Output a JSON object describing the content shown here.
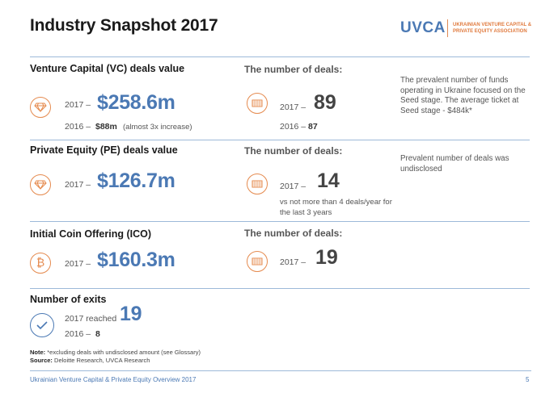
{
  "title": "Industry Snapshot 2017",
  "logo": {
    "mark": "UVCA",
    "text": "UKRAINIAN VENTURE CAPITAL & PRIVATE EQUITY ASSOCIATION"
  },
  "vc": {
    "label": "Venture Capital (VC) deals value",
    "year_2017": "2017 –",
    "value_2017": "$258.6m",
    "year_2016": "2016 –",
    "value_2016": "$88m",
    "note_2016": "(almost 3x increase)",
    "deals_label": "The number of deals:",
    "deals_year_2017": "2017 –",
    "deals_2017": "89",
    "deals_year_2016": "2016 –",
    "deals_2016": "87",
    "side_note": "The prevalent number of funds operating in Ukraine focused on the Seed stage. The average ticket at Seed stage - $484k*"
  },
  "pe": {
    "label": "Private Equity (PE) deals value",
    "year_2017": "2017 –",
    "value_2017": "$126.7m",
    "deals_label": "The number of deals:",
    "deals_year_2017": "2017 –",
    "deals_2017": "14",
    "deals_note": "vs not more than 4 deals/year for the last 3 years",
    "side_note": "Prevalent number of deals was undisclosed"
  },
  "ico": {
    "label": "Initial Coin Offering (ICO)",
    "year_2017": "2017 –",
    "value_2017": "$160.3m",
    "deals_label": "The number of deals:",
    "deals_year_2017": "2017 –",
    "deals_2017": "19"
  },
  "exits": {
    "label": "Number of exits",
    "reached_text": "2017 reached",
    "value_2017": "19",
    "year_2016": "2016 –",
    "value_2016": "8"
  },
  "notes": {
    "note_label": "Note:",
    "note_text": "*excluding deals with undisclosed amount (see Glossary)",
    "source_label": "Source:",
    "source_text": "Deloitte Research, UVCA Research"
  },
  "footer": {
    "text": "Ukrainian Venture Capital & Private Equity Overview 2017",
    "page": "5"
  },
  "colors": {
    "accent_orange": "#e58a4e",
    "brand_blue": "#4b79b4"
  }
}
